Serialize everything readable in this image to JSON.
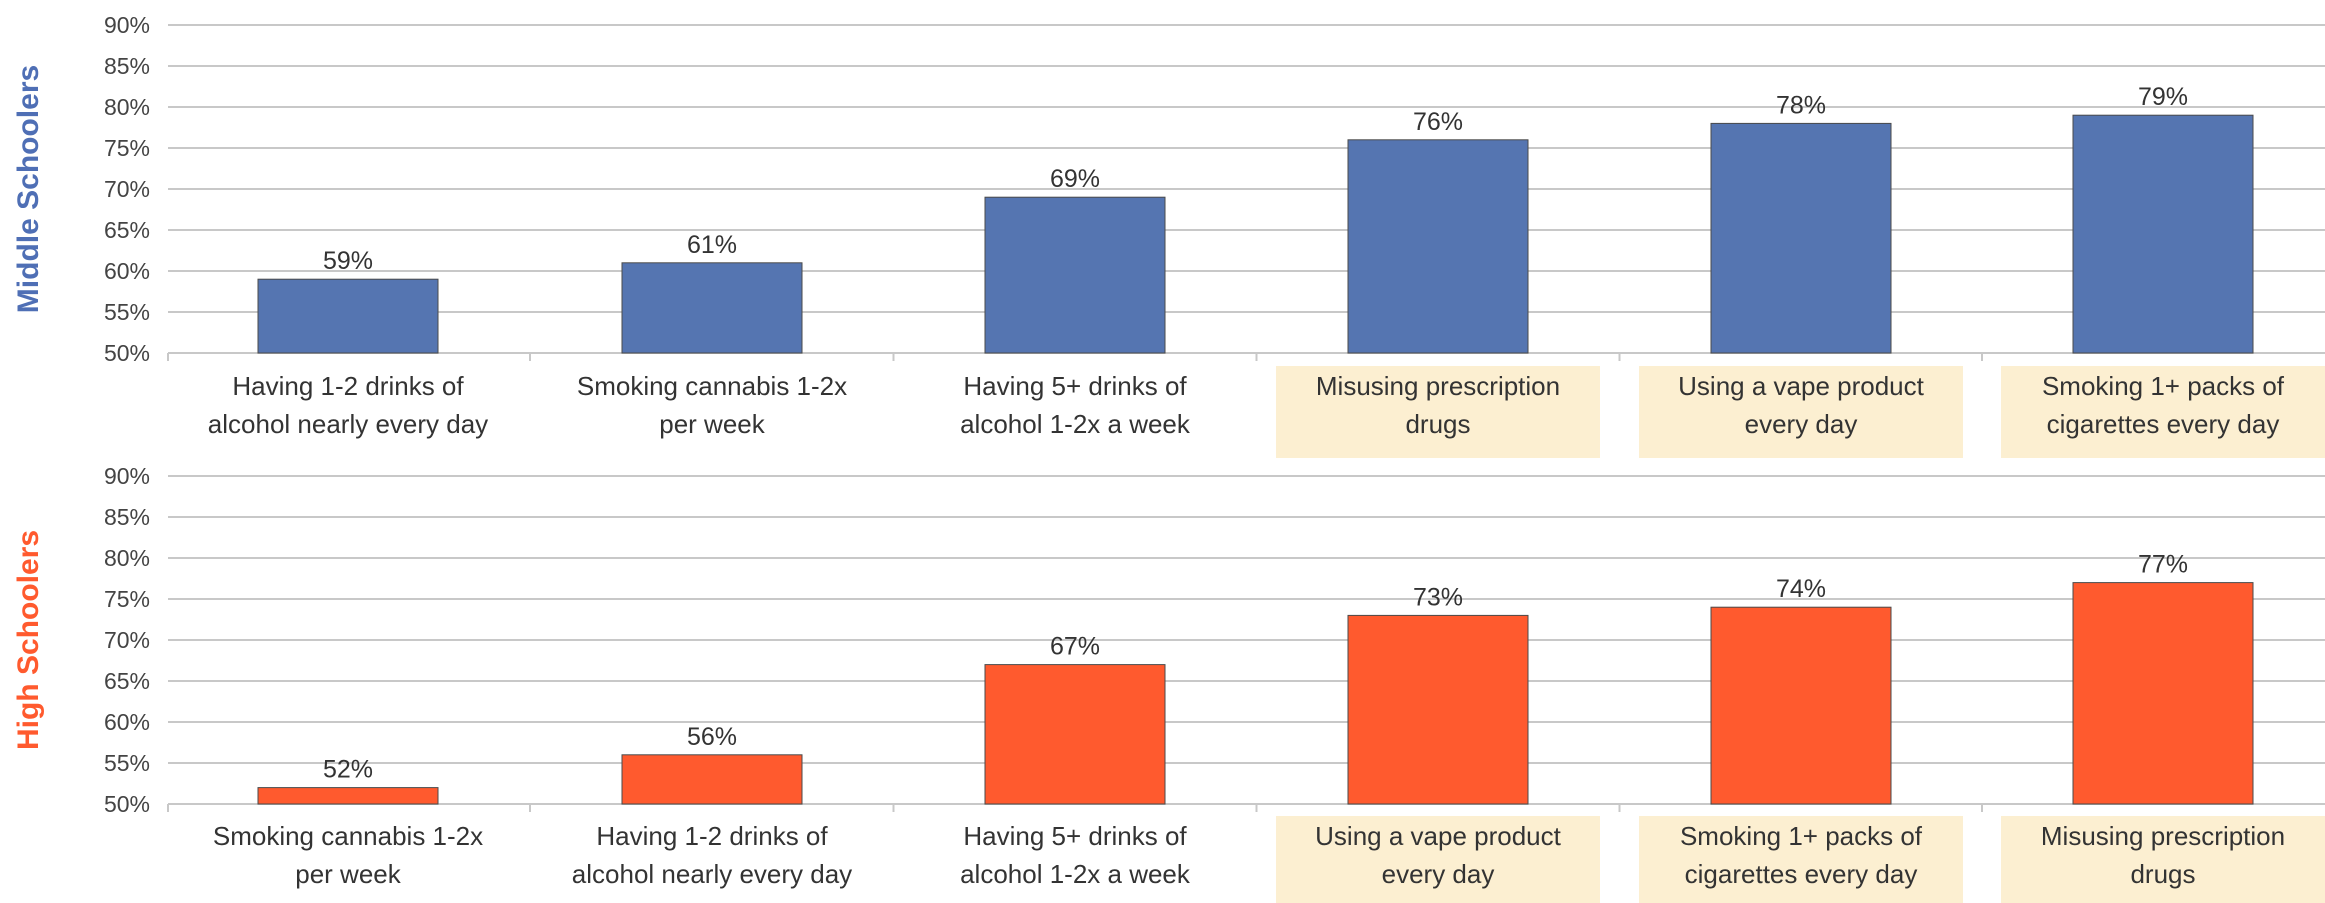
{
  "chart_data": [
    {
      "type": "bar",
      "panel_label": "Middle Schoolers",
      "categories": [
        "Having 1-2 drinks of alcohol nearly every day",
        "Smoking cannabis 1-2x per week",
        "Having 5+ drinks of alcohol 1-2x a week",
        "Misusing prescription drugs",
        "Using a vape product every day",
        "Smoking 1+ packs of cigarettes every day"
      ],
      "category_lines": [
        [
          "Having 1-2 drinks of",
          "alcohol nearly every day"
        ],
        [
          "Smoking cannabis 1-2x",
          "per week"
        ],
        [
          "Having 5+ drinks of",
          "alcohol 1-2x a week"
        ],
        [
          "Misusing prescription",
          "drugs"
        ],
        [
          "Using a vape product",
          "every day"
        ],
        [
          "Smoking 1+ packs of",
          "cigarettes every day"
        ]
      ],
      "highlighted": [
        false,
        false,
        false,
        true,
        true,
        true
      ],
      "values": [
        59,
        61,
        69,
        76,
        78,
        79
      ],
      "data_labels": [
        "59%",
        "61%",
        "69%",
        "76%",
        "78%",
        "79%"
      ],
      "ylim": [
        50,
        90
      ],
      "yticks": [
        "50%",
        "55%",
        "60%",
        "65%",
        "70%",
        "75%",
        "80%",
        "85%",
        "90%"
      ],
      "grid": true,
      "bar_color": "#5575b1",
      "label_color": "#4f6fb5"
    },
    {
      "type": "bar",
      "panel_label": "High Schoolers",
      "categories": [
        "Smoking cannabis 1-2x per week",
        "Having 1-2 drinks of alcohol nearly every day",
        "Having 5+ drinks of alcohol 1-2x a week",
        "Using a vape product every day",
        "Smoking 1+ packs of cigarettes every day",
        "Misusing prescription drugs"
      ],
      "category_lines": [
        [
          "Smoking cannabis 1-2x",
          "per week"
        ],
        [
          "Having 1-2 drinks of",
          "alcohol nearly every day"
        ],
        [
          "Having 5+ drinks of",
          "alcohol 1-2x a week"
        ],
        [
          "Using a vape product",
          "every day"
        ],
        [
          "Smoking 1+ packs of",
          "cigarettes every day"
        ],
        [
          "Misusing prescription",
          "drugs"
        ]
      ],
      "highlighted": [
        false,
        false,
        false,
        true,
        true,
        true
      ],
      "values": [
        52,
        56,
        67,
        73,
        74,
        77
      ],
      "data_labels": [
        "52%",
        "56%",
        "67%",
        "73%",
        "74%",
        "77%"
      ],
      "ylim": [
        50,
        90
      ],
      "yticks": [
        "50%",
        "55%",
        "60%",
        "65%",
        "70%",
        "75%",
        "80%",
        "85%",
        "90%"
      ],
      "grid": true,
      "bar_color": "#ff5a2e",
      "label_color": "#ff5a2e"
    }
  ],
  "highlight_color": "#fcefd1",
  "grid_color": "#c8c8c8"
}
